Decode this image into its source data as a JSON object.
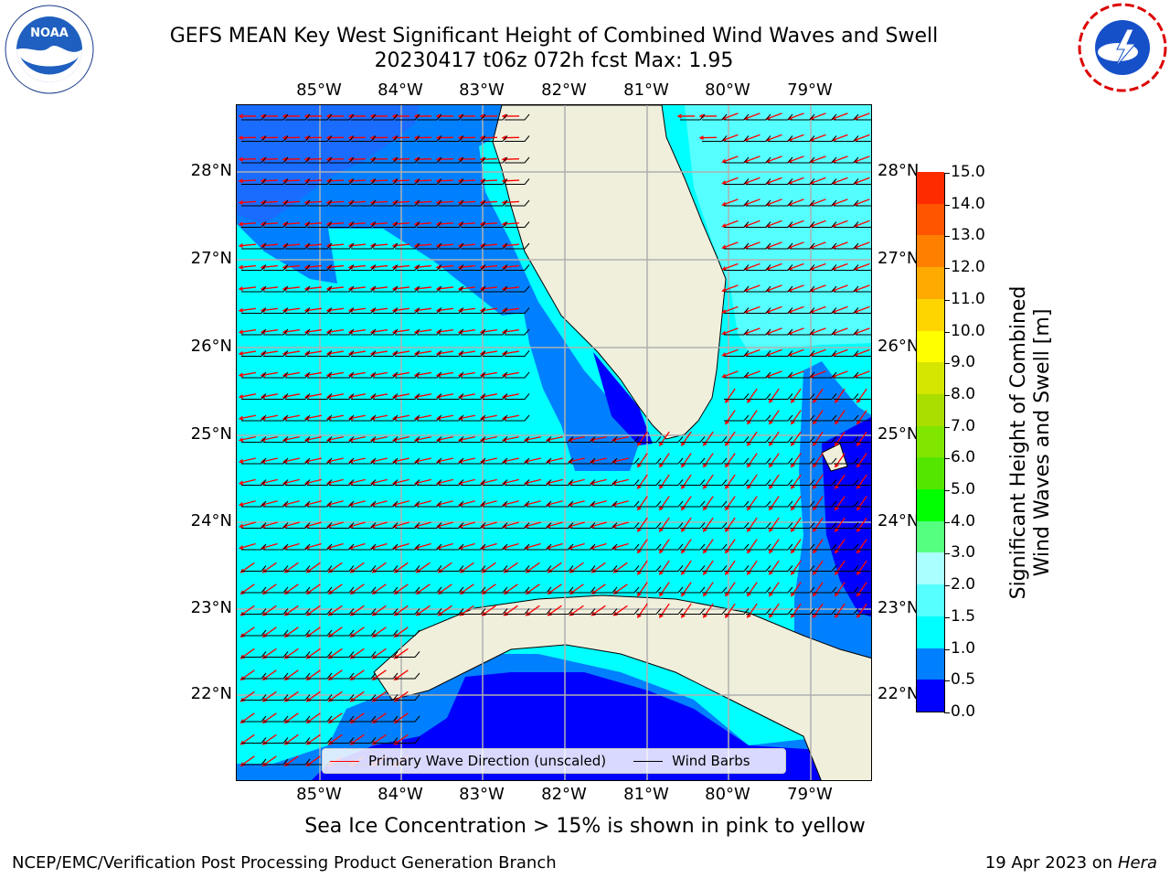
{
  "header": {
    "title_line1": "GEFS MEAN Key West Significant Height of Combined Wind Waves and Swell",
    "title_line2": "20230417 t06z 072h fcst   Max: 1.95"
  },
  "logos": {
    "left": {
      "name": "NOAA",
      "ring_text": "NATIONAL OCEANIC AND ATMOSPHERIC ADMINISTRATION · U.S. DEPARTMENT OF COMMERCE"
    },
    "right": {
      "ring_text": "NATIONAL WEATHER SERVICE"
    }
  },
  "map": {
    "x_ticks": [
      "85°W",
      "84°W",
      "83°W",
      "82°W",
      "81°W",
      "80°W",
      "79°W"
    ],
    "y_ticks": [
      "28°N",
      "27°N",
      "26°N",
      "25°N",
      "24°N",
      "23°N",
      "22°N"
    ],
    "colors": {
      "ocean_1_1p5": "#00ffff",
      "ocean_0p5_1": "#0080ff",
      "ocean_0_0p5": "#0000ff",
      "land": "#efefdc",
      "grid": "#b0b0b0",
      "wave_arrow": "#ff0000",
      "wind_barb": "#000000"
    }
  },
  "legend": {
    "wave_label": "Primary Wave Direction (unscaled)",
    "wind_label": "Wind Barbs"
  },
  "colorbar": {
    "ticks": [
      "0.0",
      "0.5",
      "1.0",
      "1.5",
      "2.0",
      "3.0",
      "4.0",
      "5.0",
      "6.0",
      "7.0",
      "8.0",
      "9.0",
      "10.0",
      "11.0",
      "12.0",
      "13.0",
      "14.0",
      "15.0"
    ],
    "colors": [
      "#0000ff",
      "#0080ff",
      "#00ffff",
      "#55ffff",
      "#aaffff",
      "#55ff80",
      "#00ff00",
      "#55e600",
      "#80e600",
      "#aadd00",
      "#d5e600",
      "#ffff00",
      "#ffd500",
      "#ffaa00",
      "#ff8000",
      "#ff5500",
      "#ff2b00",
      "#ff0000"
    ],
    "label_line1": "Significant Height of Combined",
    "label_line2": "Wind Waves and Swell [m]"
  },
  "bottom_note": "Sea Ice Concentration > 15% is shown in pink to yellow",
  "footer": {
    "left": "NCEP/EMC/Verification Post Processing Product Generation Branch",
    "right_date": "19 Apr 2023 on",
    "right_host": "Hera"
  }
}
